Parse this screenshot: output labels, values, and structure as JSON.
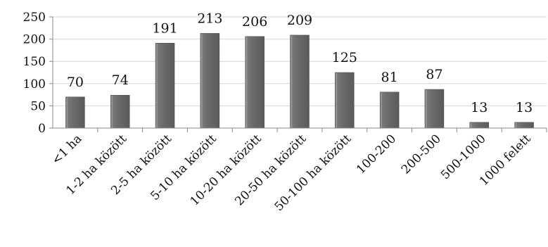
{
  "chart_data": {
    "type": "bar",
    "categories": [
      "<1 ha",
      "1-2 ha között",
      "2-5 ha között",
      "5-10 ha között",
      "10-20 ha között",
      "20-50 ha között",
      "50-100 ha között",
      "100-200",
      "200-500",
      "500-1000",
      "1000 felett"
    ],
    "values": [
      70,
      74,
      191,
      213,
      206,
      209,
      125,
      81,
      87,
      13,
      13
    ],
    "data_labels": [
      "70",
      "74",
      "191",
      "213",
      "206",
      "209",
      "125",
      "81",
      "87",
      "13",
      "13"
    ],
    "yticks": [
      "0",
      "50",
      "100",
      "150",
      "200",
      "250"
    ],
    "ylim": [
      0,
      250
    ],
    "grid": true,
    "legend": "none",
    "title": "",
    "xlabel": "",
    "ylabel": "",
    "colors": {
      "bar": "#6d6d6d",
      "bar_highlight": "#9a9a9a",
      "grid": "#d4d4d4",
      "axis": "#888888"
    }
  }
}
